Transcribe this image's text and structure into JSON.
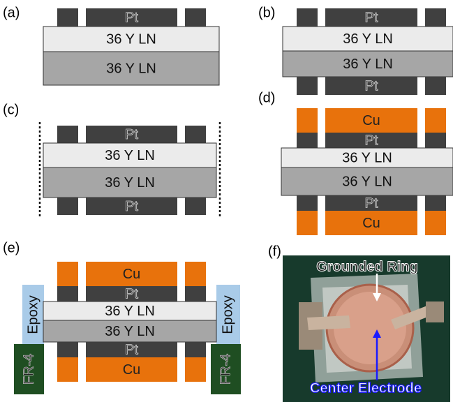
{
  "panels": {
    "a": {
      "label": "(a)",
      "pt_top": "Pt",
      "ln_top": "36 Y LN",
      "ln_bottom": "36 Y LN"
    },
    "b": {
      "label": "(b)",
      "pt_top": "Pt",
      "ln_top": "36 Y LN",
      "ln_bottom": "36 Y LN",
      "pt_bottom": "Pt"
    },
    "c": {
      "label": "(c)",
      "pt_top": "Pt",
      "ln_top": "36 Y LN",
      "ln_bottom": "36 Y LN",
      "pt_bottom": "Pt"
    },
    "d": {
      "label": "(d)",
      "cu_top": "Cu",
      "pt_top": "Pt",
      "ln_top": "36 Y LN",
      "ln_bottom": "36 Y LN",
      "pt_bottom": "Pt",
      "cu_bottom": "Cu"
    },
    "e": {
      "label": "(e)",
      "cu_top": "Cu",
      "pt_top": "Pt",
      "ln_top": "36 Y LN",
      "ln_bottom": "36 Y LN",
      "pt_bottom": "Pt",
      "cu_bottom": "Cu",
      "epoxy_left": "Epoxy",
      "epoxy_right": "Epoxy",
      "fr4_left": "FR-4",
      "fr4_right": "FR-4"
    },
    "f": {
      "label": "(f)",
      "grounded_ring": "Grounded Ring",
      "center_electrode": "Center Electrode"
    }
  }
}
